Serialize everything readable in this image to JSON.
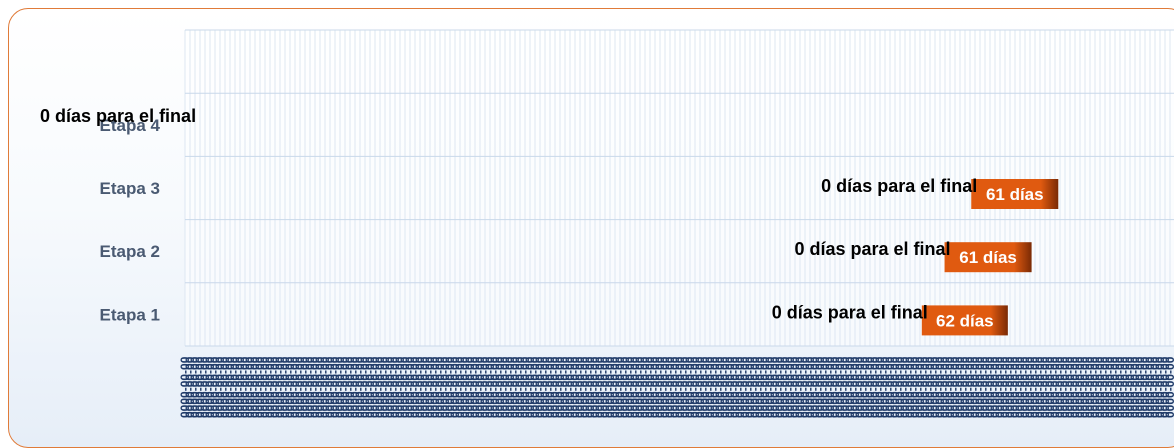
{
  "chart_data": {
    "type": "bar",
    "orientation": "horizontal",
    "categories": [
      "Etapa 1",
      "Etapa 2",
      "Etapa 3",
      "Etapa 4"
    ],
    "bars": [
      {
        "category": "Etapa 1",
        "start": 0.745,
        "end": 0.832,
        "label": "62 días",
        "status": "0 días para el final"
      },
      {
        "category": "Etapa 2",
        "start": 0.768,
        "end": 0.856,
        "label": "61 días",
        "status": "0 días para el final"
      },
      {
        "category": "Etapa 3",
        "start": 0.795,
        "end": 0.883,
        "label": "61 días",
        "status": "0 días para el final"
      },
      {
        "category": "Etapa 4",
        "start": null,
        "end": null,
        "label": "",
        "status": "0 días para el final"
      }
    ],
    "grid": true,
    "x_tick_labels": "illegible (overlapping rotated date labels)"
  },
  "colors": {
    "bar": "#e05a10",
    "bar_dark": "#7a2a05",
    "frame_border": "#e07b39",
    "category_text": "#4a5a72",
    "grid": "#dde7f2"
  }
}
